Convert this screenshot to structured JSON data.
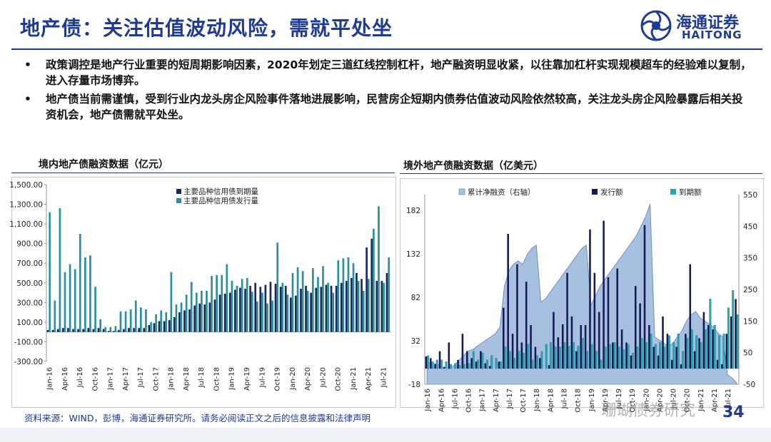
{
  "title": "地产债：关注估值波动风险，需就平处坐",
  "logo": {
    "cn": "海通证券",
    "en": "HAITONG"
  },
  "bullets": [
    {
      "dot": "•",
      "text": "政策调控是地产行业重要的短周期影响因素，2020年划定三道红线控制杠杆，地产融资明显收紧，以往靠加杠杆实现规模超车的经验难以复制，进入存量市场博弈。"
    },
    {
      "dot": "•",
      "text": "地产债当前需谨慎，受到行业内龙头房企风险事件落地进展影响，民营房企短期内债券估值波动风险依然较高，关注龙头房企风险暴露后相关投资机会，地产债需就平处坐。"
    }
  ],
  "source": "资料来源：WIND，彭博，海通证券研究所。请务必阅读正文之后的信息披露和法律声明",
  "page_number": "34",
  "watermark": "珊瑚债券研究",
  "chart_data": [
    {
      "type": "bar",
      "title": "境内地产债融资数据（亿元）",
      "months_start": "2016-01",
      "x_tick_labels": [
        "Jan-16",
        "Apr-16",
        "Jul-16",
        "Oct-16",
        "Jan-17",
        "Apr-17",
        "Jul-17",
        "Oct-17",
        "Jan-18",
        "Apr-18",
        "Jul-18",
        "Oct-18",
        "Jan-19",
        "Apr-19",
        "Jul-19",
        "Oct-19",
        "Jan-20",
        "Apr-20",
        "Jul-20",
        "Oct-20",
        "Jan-21",
        "Apr-21",
        "Jul-21"
      ],
      "y_tick_labels": [
        "-300.00",
        "-100.00",
        "100.00",
        "300.00",
        "500.00",
        "700.00",
        "900.00",
        "1,100.00",
        "1,300.00",
        "1,500.00"
      ],
      "ylim": [
        -300,
        1500
      ],
      "colors": {
        "maturity": "#1a2a5e",
        "issuance": "#2a8fa0"
      },
      "series": [
        {
          "name": "主要品种信用债到期量",
          "values": [
            20,
            20,
            30,
            40,
            40,
            30,
            30,
            30,
            40,
            30,
            40,
            30,
            10,
            10,
            20,
            30,
            40,
            40,
            40,
            40,
            70,
            90,
            110,
            110,
            120,
            150,
            200,
            220,
            230,
            270,
            290,
            280,
            300,
            330,
            380,
            390,
            400,
            430,
            450,
            440,
            470,
            500,
            460,
            480,
            510,
            490,
            460,
            470,
            350,
            370,
            440,
            470,
            400,
            450,
            460,
            480,
            470,
            470,
            500,
            520,
            550,
            600,
            540,
            860,
            950,
            520,
            520,
            600
          ]
        },
        {
          "name": "主要品种信用债发行量",
          "values": [
            1220,
            320,
            1260,
            610,
            690,
            640,
            1000,
            760,
            780,
            460,
            130,
            50,
            50,
            60,
            210,
            210,
            230,
            320,
            250,
            230,
            100,
            180,
            220,
            200,
            610,
            280,
            300,
            380,
            510,
            400,
            420,
            420,
            570,
            580,
            580,
            690,
            520,
            470,
            540,
            550,
            410,
            310,
            400,
            290,
            320,
            910,
            500,
            380,
            600,
            660,
            620,
            420,
            650,
            560,
            670,
            500,
            400,
            730,
            750,
            760,
            700,
            520,
            420,
            540,
            1050,
            1280,
            500,
            760
          ]
        }
      ]
    },
    {
      "type": "bar",
      "title": "境外地产债融资数据（亿美元）",
      "months_start": "2016-01",
      "x_tick_labels": [
        "Jan-16",
        "Apr-16",
        "Jul-16",
        "Oct-16",
        "Jan-17",
        "Apr-17",
        "Jul-17",
        "Oct-17",
        "Jan-18",
        "Apr-18",
        "Jul-18",
        "Oct-18",
        "Jan-19",
        "Apr-19",
        "Jul-19",
        "Oct-19",
        "Jan-20",
        "Apr-20",
        "Jul-20",
        "Oct-20",
        "Jan-21",
        "Apr-21",
        "Jul-21"
      ],
      "y_left_tick_labels": [
        "-18",
        "32",
        "82",
        "132",
        "182"
      ],
      "y_right_tick_labels": [
        "-50",
        "50",
        "150",
        "250",
        "350",
        "450",
        "550"
      ],
      "ylim_left": [
        -18,
        200
      ],
      "ylim_right": [
        -50,
        550
      ],
      "colors": {
        "net": "#a8c0e0",
        "net_line": "#6f8fc0",
        "issue": "#141a55",
        "mature": "#2aa3b5"
      },
      "series": [
        {
          "name": "累计净融资（右轴）",
          "axis": "right",
          "values": [
            20,
            18,
            15,
            10,
            -5,
            0,
            10,
            25,
            40,
            55,
            60,
            70,
            80,
            90,
            100,
            110,
            130,
            260,
            310,
            330,
            340,
            330,
            360,
            380,
            390,
            210,
            220,
            240,
            260,
            280,
            300,
            320,
            340,
            360,
            380,
            390,
            200,
            230,
            260,
            280,
            300,
            320,
            340,
            360,
            380,
            400,
            420,
            450,
            480,
            520,
            100,
            90,
            80,
            70,
            80,
            100,
            120,
            150,
            170,
            180,
            160,
            150,
            140,
            130,
            110,
            100,
            -20,
            -30,
            -45
          ]
        },
        {
          "name": "发行额",
          "axis": "left",
          "values": [
            14,
            12,
            5,
            20,
            2,
            30,
            0,
            10,
            40,
            20,
            12,
            8,
            20,
            6,
            3,
            0,
            8,
            70,
            155,
            40,
            120,
            30,
            100,
            50,
            25,
            12,
            0,
            4,
            65,
            36,
            51,
            110,
            60,
            20,
            50,
            50,
            160,
            110,
            65,
            170,
            105,
            30,
            115,
            45,
            30,
            15,
            95,
            75,
            165,
            50,
            25,
            15,
            60,
            40,
            10,
            25,
            5,
            40,
            120,
            20,
            35,
            65,
            50,
            45,
            10,
            5,
            40,
            60,
            80
          ]
        },
        {
          "name": "到期额",
          "axis": "left",
          "values": [
            15,
            8,
            10,
            10,
            8,
            5,
            6,
            4,
            5,
            6,
            20,
            10,
            18,
            10,
            15,
            12,
            8,
            25,
            20,
            12,
            20,
            18,
            28,
            10,
            15,
            20,
            28,
            30,
            25,
            25,
            30,
            26,
            30,
            26,
            35,
            20,
            28,
            20,
            10,
            25,
            28,
            30,
            25,
            22,
            28,
            18,
            25,
            35,
            30,
            40,
            28,
            30,
            25,
            38,
            30,
            40,
            20,
            35,
            45,
            38,
            30,
            45,
            80,
            50,
            38,
            40,
            70,
            90,
            62
          ]
        }
      ]
    }
  ]
}
